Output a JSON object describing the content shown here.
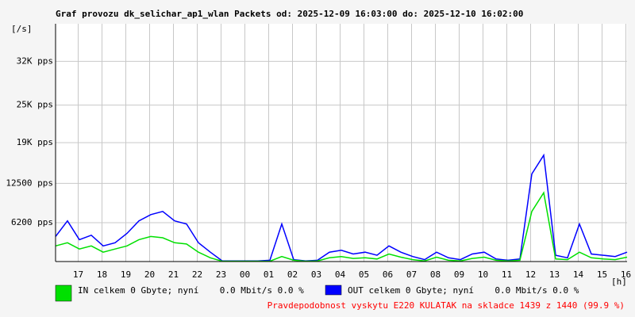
{
  "chart_data": {
    "type": "line",
    "title": "Graf provozu dk_selichar_ap1_wlan Packets od: 2025-12-09 16:03:00 do: 2025-12-10 16:02:00",
    "y_unit_label": "[/s]",
    "x_unit_label": "[h]",
    "x": [
      0,
      0.5,
      1,
      1.5,
      2,
      2.5,
      3,
      3.5,
      4,
      4.5,
      5,
      5.5,
      6,
      6.5,
      7,
      7.5,
      8,
      8.5,
      9,
      9.5,
      10,
      10.5,
      11,
      11.5,
      12,
      12.5,
      13,
      13.5,
      14,
      14.5,
      15,
      15.5,
      16,
      16.5,
      17,
      17.5,
      18,
      18.5,
      19,
      19.5,
      20,
      20.5,
      21,
      21.5,
      22,
      22.5,
      23,
      23.5,
      24
    ],
    "xlim": [
      0,
      24
    ],
    "xticks": [
      {
        "value": 0.95,
        "label": "17"
      },
      {
        "value": 1.95,
        "label": "18"
      },
      {
        "value": 2.95,
        "label": "19"
      },
      {
        "value": 3.95,
        "label": "20"
      },
      {
        "value": 4.95,
        "label": "21"
      },
      {
        "value": 5.95,
        "label": "22"
      },
      {
        "value": 6.95,
        "label": "23"
      },
      {
        "value": 7.95,
        "label": "00"
      },
      {
        "value": 8.95,
        "label": "01"
      },
      {
        "value": 9.95,
        "label": "02"
      },
      {
        "value": 10.95,
        "label": "03"
      },
      {
        "value": 11.95,
        "label": "04"
      },
      {
        "value": 12.95,
        "label": "05"
      },
      {
        "value": 13.95,
        "label": "06"
      },
      {
        "value": 14.95,
        "label": "07"
      },
      {
        "value": 15.95,
        "label": "08"
      },
      {
        "value": 16.95,
        "label": "09"
      },
      {
        "value": 17.95,
        "label": "10"
      },
      {
        "value": 18.95,
        "label": "11"
      },
      {
        "value": 19.95,
        "label": "12"
      },
      {
        "value": 20.95,
        "label": "13"
      },
      {
        "value": 21.95,
        "label": "14"
      },
      {
        "value": 22.95,
        "label": "15"
      },
      {
        "value": 23.95,
        "label": "16"
      }
    ],
    "ylim": [
      0,
      38000
    ],
    "yticks": [
      {
        "value": 6200,
        "label": "6200 pps"
      },
      {
        "value": 12500,
        "label": "12500 pps"
      },
      {
        "value": 19000,
        "label": "19K pps"
      },
      {
        "value": 25000,
        "label": "25K pps"
      },
      {
        "value": 32000,
        "label": "32K pps"
      }
    ],
    "grid": true,
    "series": [
      {
        "name": "OUT celkem 0 Gbyte; nyní    0.0 Mbit/s 0.0 %",
        "color": "#0000ff",
        "values": [
          4000,
          6500,
          3500,
          4200,
          2500,
          3000,
          4500,
          6500,
          7500,
          8000,
          6500,
          6000,
          3000,
          1500,
          100,
          100,
          100,
          100,
          200,
          6000,
          300,
          100,
          200,
          1500,
          1800,
          1200,
          1500,
          1000,
          2500,
          1500,
          800,
          300,
          1500,
          600,
          300,
          1200,
          1500,
          400,
          200,
          400,
          14000,
          17000,
          1000,
          600,
          6000,
          1200,
          1000,
          800,
          1500
        ]
      },
      {
        "name": "IN celkem 0 Gbyte; nyní    0.0 Mbit/s 0.0 %",
        "color": "#00e000",
        "values": [
          2500,
          3000,
          2000,
          2500,
          1500,
          2000,
          2500,
          3500,
          4000,
          3800,
          3000,
          2800,
          1500,
          600,
          50,
          50,
          50,
          50,
          50,
          800,
          200,
          50,
          100,
          600,
          800,
          500,
          600,
          400,
          1200,
          700,
          300,
          100,
          700,
          200,
          100,
          500,
          700,
          200,
          100,
          200,
          8000,
          11000,
          400,
          300,
          1500,
          600,
          400,
          300,
          700
        ]
      }
    ],
    "footer": "Pravdepodobnost vyskytu E220 KULATAK na skladce 1439 z 1440 (99.9 %)"
  }
}
